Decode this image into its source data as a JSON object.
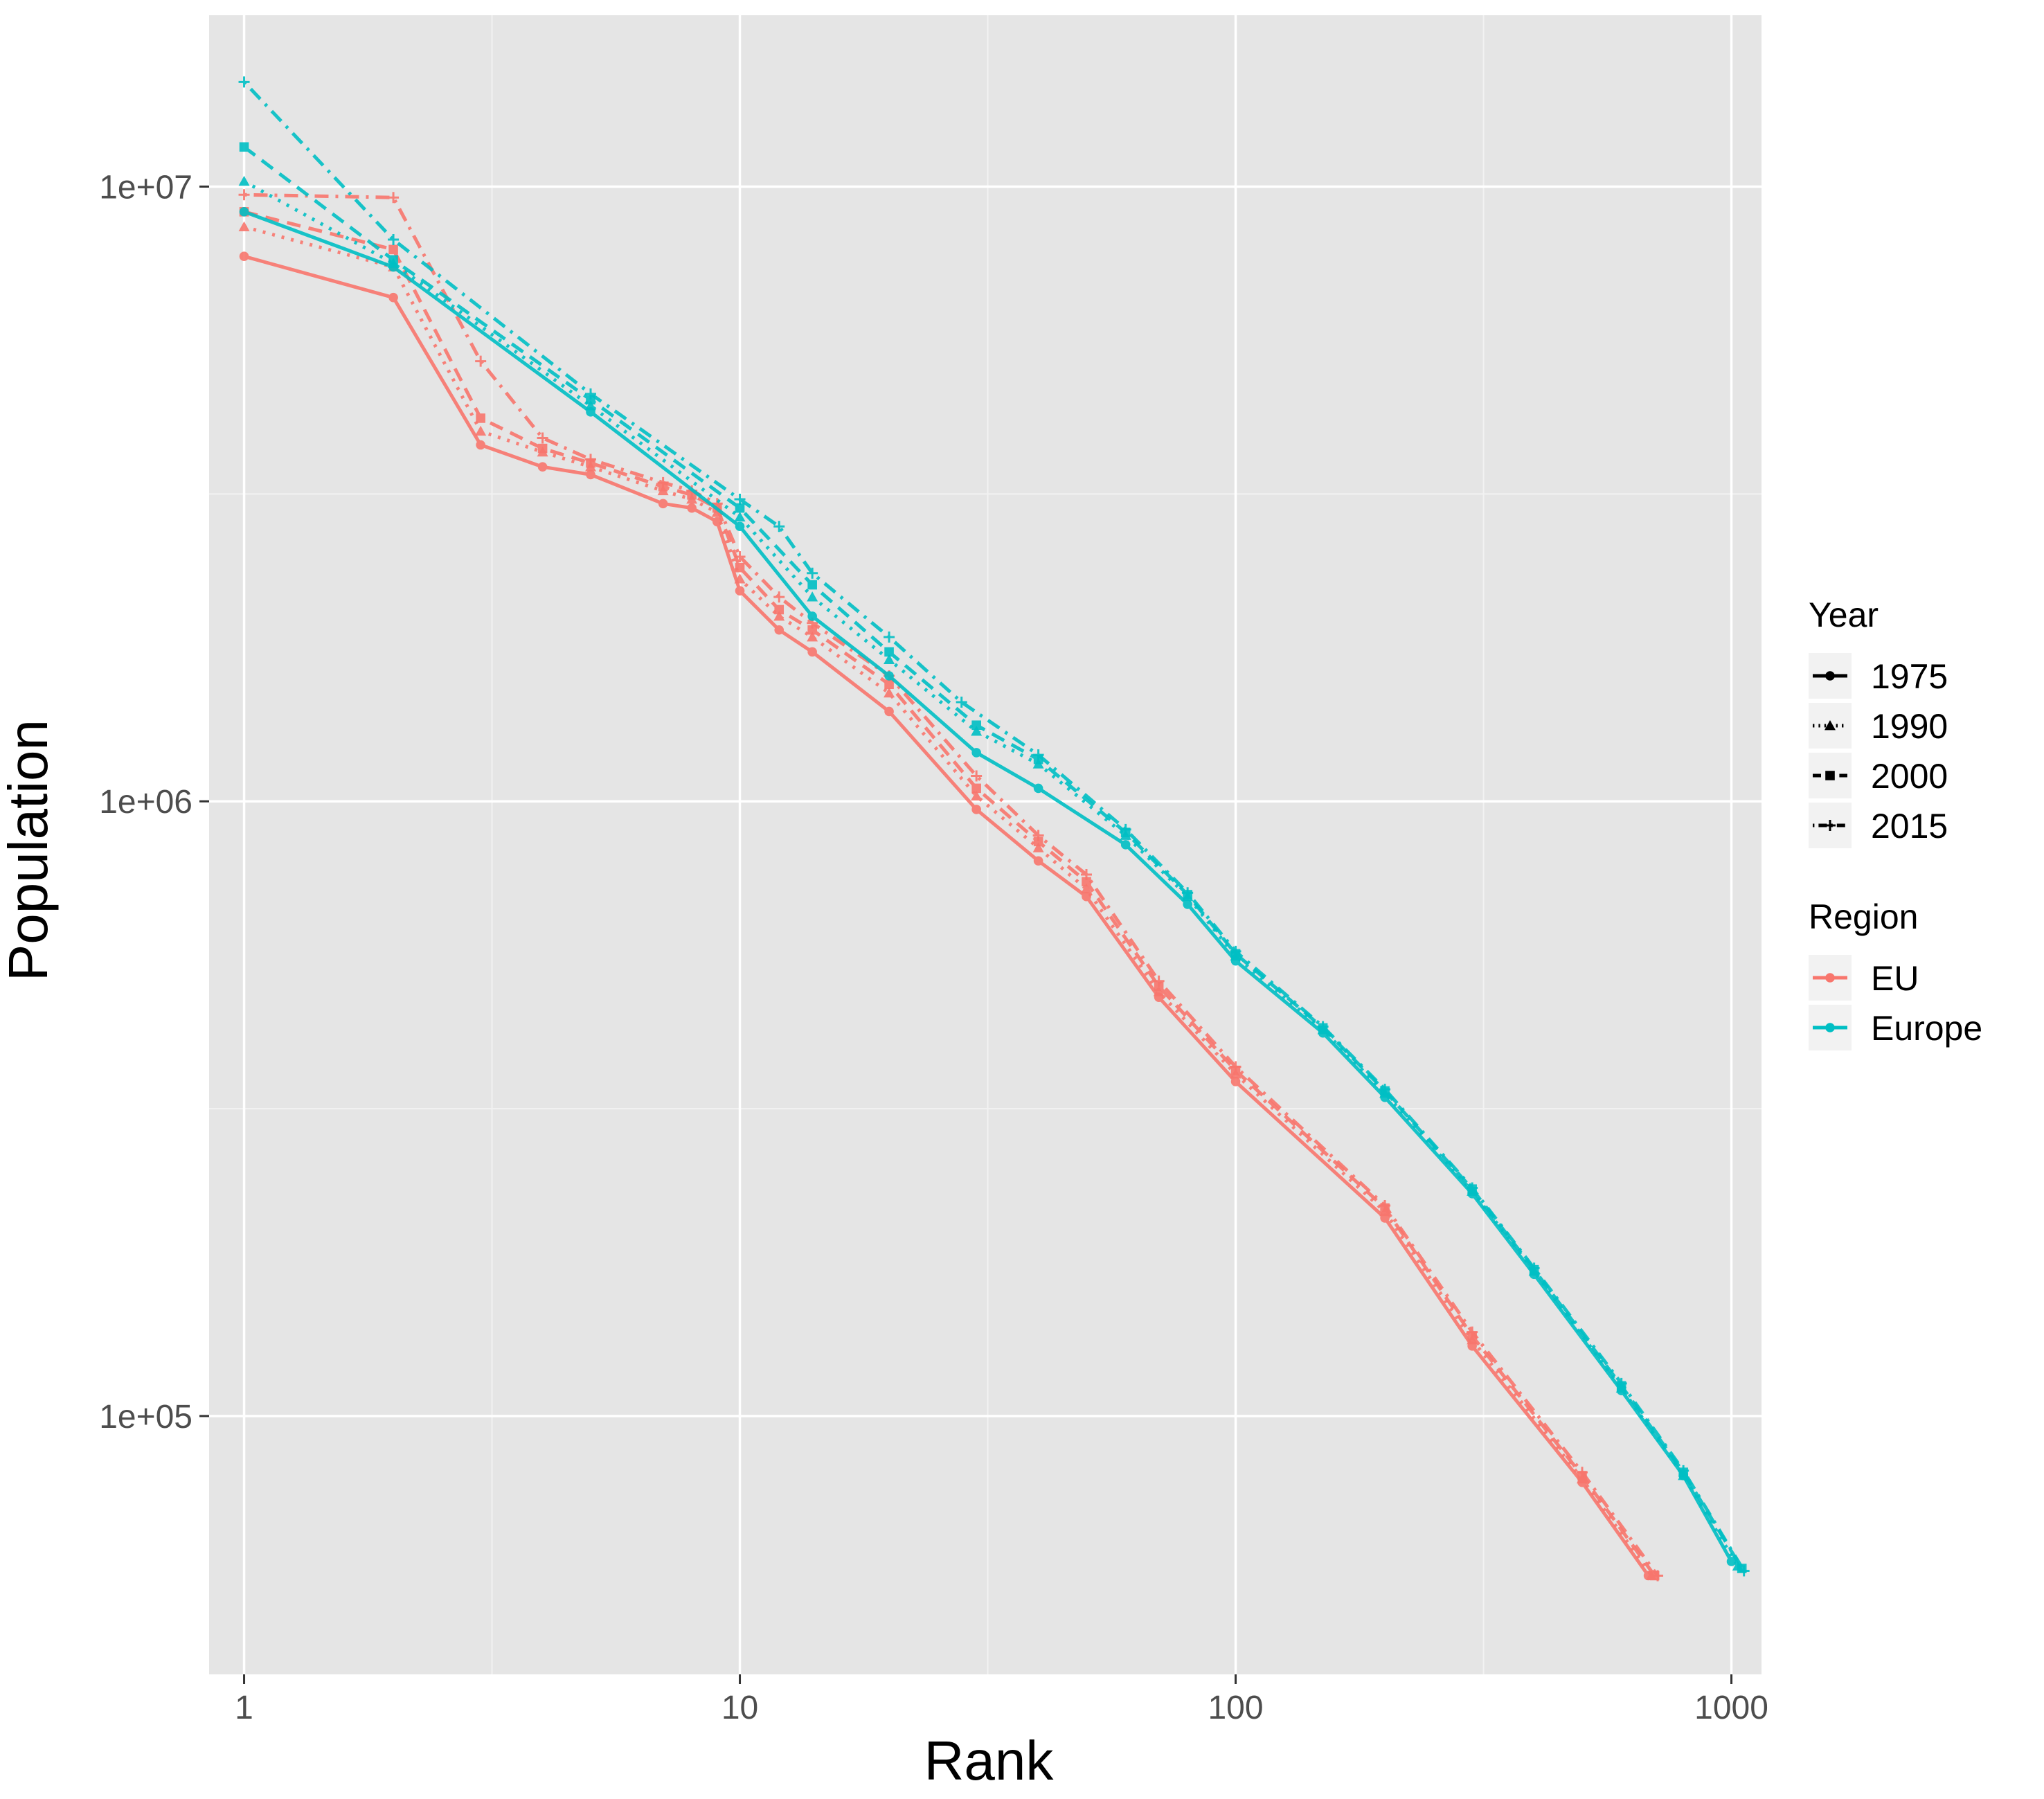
{
  "chart_data": {
    "type": "line",
    "xlabel": "Rank",
    "ylabel": "Population",
    "x_scale": "log10",
    "y_scale": "log10",
    "xlim": [
      0.85,
      1150
    ],
    "ylim": [
      38000,
      19000000
    ],
    "x_ticks": [
      1,
      10,
      100,
      1000
    ],
    "x_tick_labels": [
      "1",
      "10",
      "100",
      "1000"
    ],
    "y_ticks": [
      100000,
      1000000,
      10000000
    ],
    "y_tick_labels": [
      "1e+05",
      "1e+06",
      "1e+07"
    ],
    "grid": true,
    "panel_background": "#E5E5E5",
    "legend_position": "right",
    "legends": [
      {
        "title": "Year",
        "entries": [
          {
            "label": "1975",
            "line": "solid",
            "shape": "circle"
          },
          {
            "label": "1990",
            "line": "dotted",
            "shape": "triangle"
          },
          {
            "label": "2000",
            "line": "dashed",
            "shape": "square"
          },
          {
            "label": "2015",
            "line": "dotdash",
            "shape": "plus"
          }
        ]
      },
      {
        "title": "Region",
        "entries": [
          {
            "label": "EU",
            "color": "#F8766D"
          },
          {
            "label": "Europe",
            "color": "#00BFC4"
          }
        ]
      }
    ],
    "series": [
      {
        "name": "EU",
        "year": "1975",
        "color": "#F8766D",
        "line": "solid",
        "shape": "circle",
        "x": [
          1,
          2,
          3,
          4,
          5,
          7,
          8,
          9,
          10,
          12,
          14,
          20,
          30,
          40,
          50,
          70,
          100,
          200,
          300,
          500,
          680
        ],
        "y": [
          7700000,
          6600000,
          3800000,
          3500000,
          3400000,
          3050000,
          3000000,
          2850000,
          2200000,
          1900000,
          1750000,
          1400000,
          970000,
          800000,
          700000,
          480000,
          350000,
          210000,
          130000,
          78000,
          55000
        ]
      },
      {
        "name": "EU",
        "year": "1990",
        "color": "#F8766D",
        "line": "dotted",
        "shape": "triangle",
        "x": [
          1,
          2,
          3,
          4,
          5,
          7,
          8,
          9,
          10,
          12,
          14,
          20,
          30,
          40,
          50,
          70,
          100,
          200,
          300,
          500,
          690
        ],
        "y": [
          8600000,
          7400000,
          4000000,
          3700000,
          3500000,
          3200000,
          3100000,
          2950000,
          2300000,
          2000000,
          1850000,
          1500000,
          1020000,
          840000,
          720000,
          490000,
          360000,
          215000,
          133000,
          79000,
          55000
        ]
      },
      {
        "name": "EU",
        "year": "2000",
        "color": "#F8766D",
        "line": "dashed",
        "shape": "square",
        "x": [
          1,
          2,
          3,
          4,
          5,
          7,
          8,
          9,
          10,
          12,
          14,
          20,
          30,
          40,
          50,
          70,
          100,
          200,
          300,
          500,
          700
        ],
        "y": [
          9100000,
          7900000,
          4200000,
          3750000,
          3550000,
          3250000,
          3150000,
          3000000,
          2400000,
          2050000,
          1900000,
          1550000,
          1050000,
          860000,
          740000,
          500000,
          365000,
          218000,
          135000,
          80000,
          55000
        ]
      },
      {
        "name": "EU",
        "year": "2015",
        "color": "#F8766D",
        "line": "dotdash",
        "shape": "plus",
        "x": [
          1,
          2,
          3,
          4,
          5,
          7,
          8,
          9,
          10,
          12,
          14,
          20,
          30,
          40,
          50,
          70,
          100,
          200,
          300,
          500,
          710
        ],
        "y": [
          9700000,
          9600000,
          5200000,
          3900000,
          3600000,
          3300000,
          3200000,
          3050000,
          2500000,
          2150000,
          1950000,
          1600000,
          1100000,
          880000,
          760000,
          510000,
          370000,
          220000,
          137000,
          81000,
          55000
        ]
      },
      {
        "name": "Europe",
        "year": "1975",
        "color": "#00BFC4",
        "line": "solid",
        "shape": "circle",
        "x": [
          1,
          2,
          5,
          10,
          14,
          20,
          30,
          40,
          60,
          80,
          100,
          150,
          200,
          300,
          400,
          600,
          800,
          1000
        ],
        "y": [
          9100000,
          7400000,
          4300000,
          2800000,
          2000000,
          1600000,
          1200000,
          1050000,
          850000,
          680000,
          550000,
          420000,
          330000,
          230000,
          170000,
          110000,
          80000,
          58000
        ]
      },
      {
        "name": "Europe",
        "year": "1990",
        "color": "#00BFC4",
        "line": "dotted",
        "shape": "triangle",
        "x": [
          1,
          2,
          5,
          10,
          14,
          20,
          30,
          40,
          60,
          80,
          100,
          150,
          200,
          300,
          400,
          600,
          800,
          1030
        ],
        "y": [
          10200000,
          7500000,
          4400000,
          2900000,
          2150000,
          1700000,
          1300000,
          1150000,
          880000,
          700000,
          560000,
          425000,
          335000,
          232000,
          172000,
          111000,
          80000,
          57000
        ]
      },
      {
        "name": "Europe",
        "year": "2000",
        "color": "#00BFC4",
        "line": "dashed",
        "shape": "square",
        "x": [
          1,
          2,
          5,
          10,
          14,
          20,
          30,
          40,
          60,
          80,
          100,
          150,
          200,
          300,
          400,
          600,
          800,
          1050
        ],
        "y": [
          11600000,
          7600000,
          4500000,
          3000000,
          2250000,
          1750000,
          1330000,
          1170000,
          890000,
          705000,
          565000,
          428000,
          338000,
          234000,
          173000,
          112000,
          81000,
          56500
        ]
      },
      {
        "name": "Europe",
        "year": "2015",
        "color": "#00BFC4",
        "line": "dotdash",
        "shape": "plus",
        "x": [
          1,
          2,
          5,
          10,
          12,
          14,
          20,
          28,
          40,
          60,
          80,
          100,
          150,
          200,
          300,
          400,
          600,
          800,
          1060
        ],
        "y": [
          14800000,
          8200000,
          4600000,
          3100000,
          2800000,
          2350000,
          1850000,
          1450000,
          1190000,
          900000,
          710000,
          570000,
          430000,
          340000,
          235000,
          174000,
          113000,
          81500,
          56000
        ]
      }
    ]
  }
}
